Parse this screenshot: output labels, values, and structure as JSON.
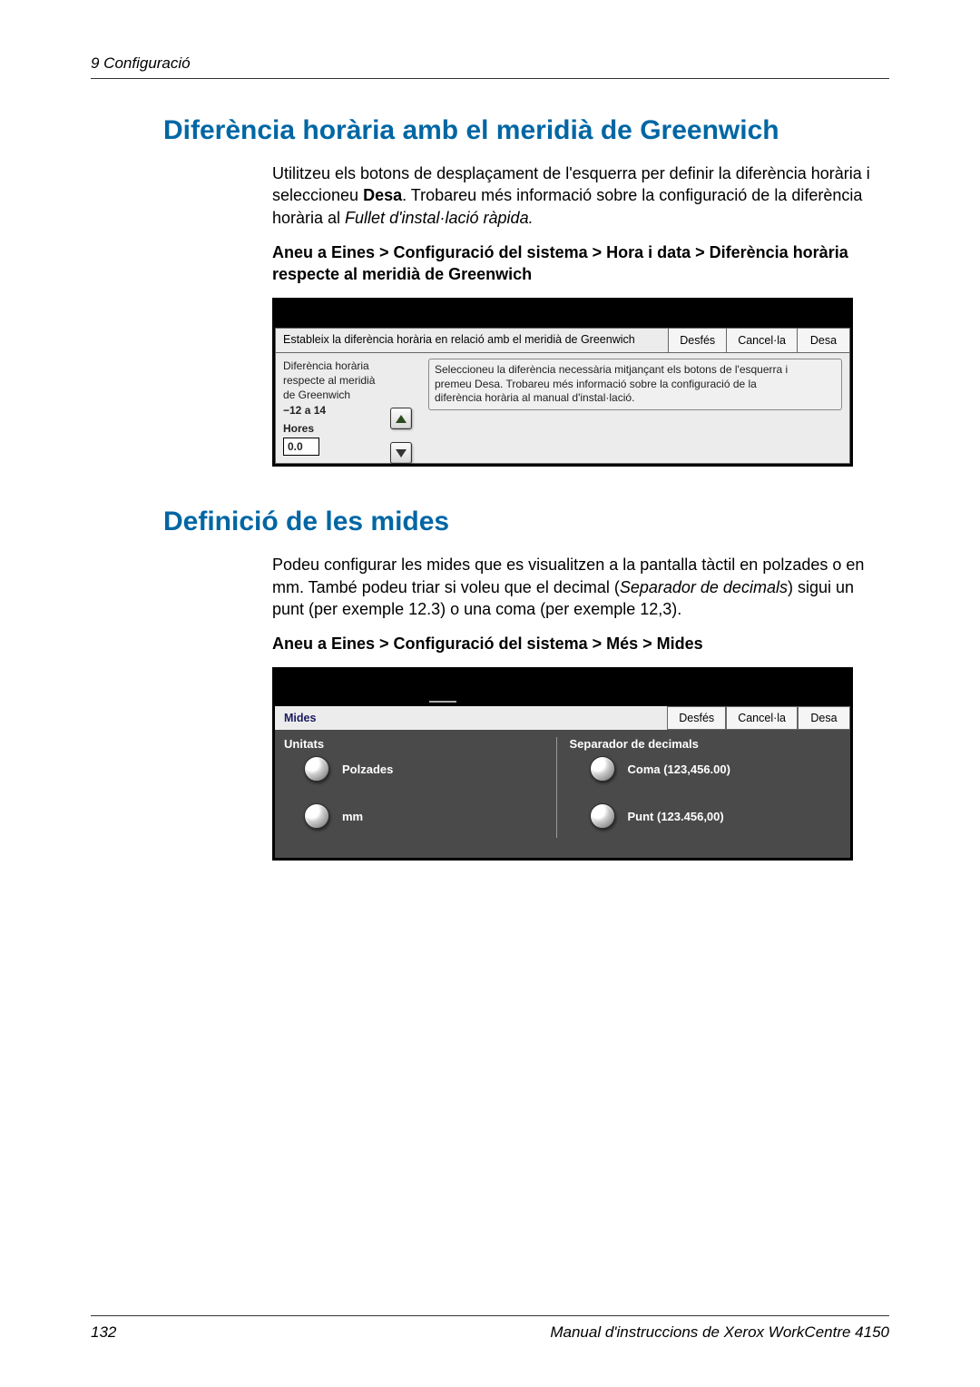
{
  "header": {
    "left": "9   Configuració"
  },
  "section1": {
    "heading": "Diferència horària amb el meridià de Greenwich",
    "para_parts": {
      "p1a": "Utilitzeu els botons de desplaçament de l'esquerra per definir la diferència horària i seleccioneu ",
      "p1b": "Desa",
      "p1c": ". Trobareu més informació sobre la configuració de la diferència horària al ",
      "p1d": "Fullet d'instal·lació ràpida.",
      "p1e": ""
    },
    "path": "Aneu a Eines > Configuració del sistema > Hora i data > Diferència horària respecte al meridià de Greenwich",
    "panel": {
      "title": "Estableix la diferència horària en relació amb el meridià de Greenwich",
      "btn_undo": "Desfés",
      "btn_cancel": "Cancel·la",
      "btn_save": "Desa",
      "left_label1": "Diferència horària",
      "left_label2": "respecte al meridià",
      "left_label3": "de Greenwich",
      "left_range": "−12 a 14",
      "left_hours": "Hores",
      "left_value": "0.0",
      "right_text1": "Seleccioneu la diferència necessària mitjançant els botons de l'esquerra i",
      "right_text2": "premeu Desa. Trobareu més informació sobre la configuració de la",
      "right_text3": "diferència horària al manual d'instal·lació."
    }
  },
  "section2": {
    "heading": "Definició de les mides",
    "para_parts": {
      "p1a": "Podeu configurar les mides que es visualitzen a la pantalla tàctil en polzades o en mm. També podeu triar si voleu que el decimal (",
      "p1b": "Separador de decimals",
      "p1c": ") sigui un punt (per exemple 12.3) o una coma (per exemple 12,3)."
    },
    "path": "Aneu a Eines > Configuració del sistema > Més > Mides",
    "panel": {
      "title": "Mides",
      "btn_undo": "Desfés",
      "btn_cancel": "Cancel·la",
      "btn_save": "Desa",
      "col1_header": "Unitats",
      "col1_opt1": "Polzades",
      "col1_opt2": "mm",
      "col2_header": "Separador de decimals",
      "col2_opt1": "Coma (123,456.00)",
      "col2_opt2": "Punt (123.456,00)"
    }
  },
  "footer": {
    "page": "132",
    "right": "Manual d'instruccions de  Xerox WorkCentre 4150"
  },
  "colors": {
    "heading": "#0066a4",
    "panel_dark": "#4a4a4a",
    "panel_light": "#ececec"
  }
}
